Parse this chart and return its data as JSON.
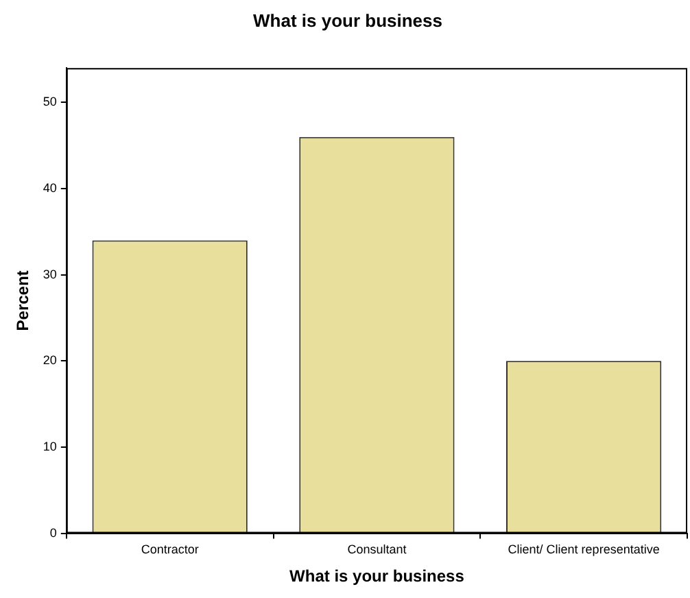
{
  "chart_data": {
    "type": "bar",
    "title": "What is your business",
    "xlabel": "What is your business",
    "ylabel": "Percent",
    "categories": [
      "Contractor",
      "Consultant",
      "Client/ Client representative"
    ],
    "values": [
      34,
      46,
      20
    ],
    "color": "#e8df9c",
    "ylim": [
      0,
      54
    ],
    "yticks": [
      0,
      10,
      20,
      30,
      40,
      50
    ],
    "grid": false,
    "legend": false
  }
}
